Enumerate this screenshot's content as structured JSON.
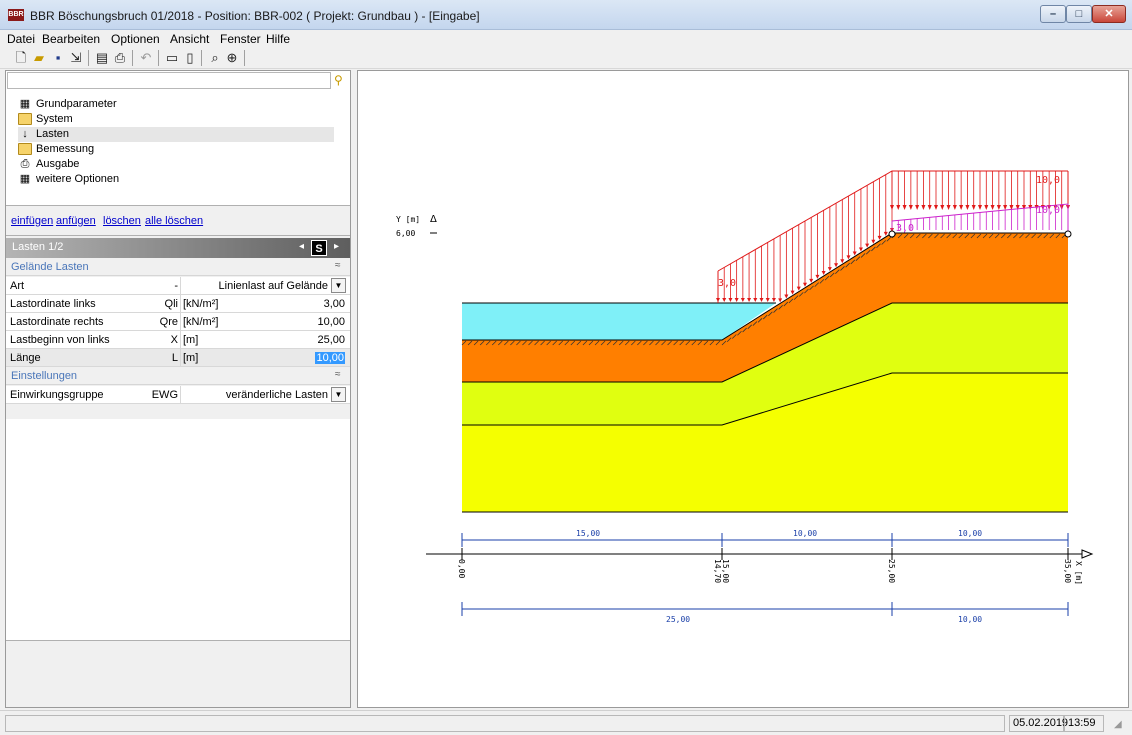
{
  "window": {
    "app_icon": "BBR",
    "title": "BBR Böschungsbruch 01/2018 - Position: BBR-002 ( Projekt: Grundbau ) - [Eingabe]",
    "controls": [
      "minimize-icon",
      "maximize-icon",
      "close-icon"
    ]
  },
  "menu": [
    "Datei",
    "Bearbeiten",
    "Optionen",
    "Ansicht",
    "Fenster",
    "Hilfe"
  ],
  "toolbar": {
    "icons": [
      "new-file-icon",
      "open-folder-icon",
      "save-icon",
      "export-icon",
      "print-preview-icon",
      "print-icon",
      "undo-icon",
      "view-input-icon",
      "view-output-icon",
      "zoom-icon",
      "zoom-all-icon"
    ]
  },
  "tree": {
    "search_value": "",
    "items": [
      {
        "label": "Grundparameter",
        "icon": "properties-icon"
      },
      {
        "label": "System",
        "icon": "folder-icon"
      },
      {
        "label": "Lasten",
        "icon": "arrow-down-icon",
        "selected": true
      },
      {
        "label": "Bemessung",
        "icon": "folder-icon"
      },
      {
        "label": "Ausgabe",
        "icon": "printer-icon"
      },
      {
        "label": "weitere Optionen",
        "icon": "properties-icon"
      }
    ]
  },
  "actions": [
    "einfügen",
    "anfügen",
    "löschen",
    "alle löschen"
  ],
  "props": {
    "header": "Lasten  1/2",
    "s_button": "S",
    "section1": "Gelände Lasten",
    "rows": [
      {
        "name": "Art",
        "symbol": "-",
        "unit": "",
        "value": "Linienlast auf Gelände"
      },
      {
        "name": "Lastordinate links",
        "symbol": "Qli",
        "unit": "[kN/m²]",
        "value": "3,00"
      },
      {
        "name": "Lastordinate rechts",
        "symbol": "Qre",
        "unit": "[kN/m²]",
        "value": "10,00"
      },
      {
        "name": "Lastbeginn von links",
        "symbol": "X",
        "unit": "[m]",
        "value": "25,00"
      },
      {
        "name": "Länge",
        "symbol": "L",
        "unit": "[m]",
        "value": "10,00"
      }
    ],
    "section2": "Einstellungen",
    "rows2": [
      {
        "name": "Einwirkungsgruppe",
        "symbol": "EWG",
        "unit": "",
        "value": "veränderliche Lasten"
      }
    ]
  },
  "drawing": {
    "y_axis_label": "Y [m]",
    "y_axis_arrow": "Δ",
    "y_tick": "6,00",
    "x_axis_label": "X [m]",
    "load_labels": [
      "3,0",
      "10,0",
      "10,0",
      "3,0"
    ],
    "dim_top": [
      "15,00",
      "10,00",
      "10,00"
    ],
    "ticks": [
      "0,00",
      "15,00",
      "14,70",
      "25,00",
      "35,00"
    ],
    "dim_bottom": [
      "25,00",
      "10,00"
    ],
    "colors": {
      "water": "#7ff0f8",
      "layer_orange": "#ff7f00",
      "layer_lime": "#e0ff10",
      "layer_yellow": "#f5ff00",
      "load_red": "#e01818",
      "load_magenta": "#cc22cc",
      "dim_blue": "#1a3fa8"
    }
  },
  "status": {
    "date": "05.02.2019",
    "time": "13:59"
  }
}
